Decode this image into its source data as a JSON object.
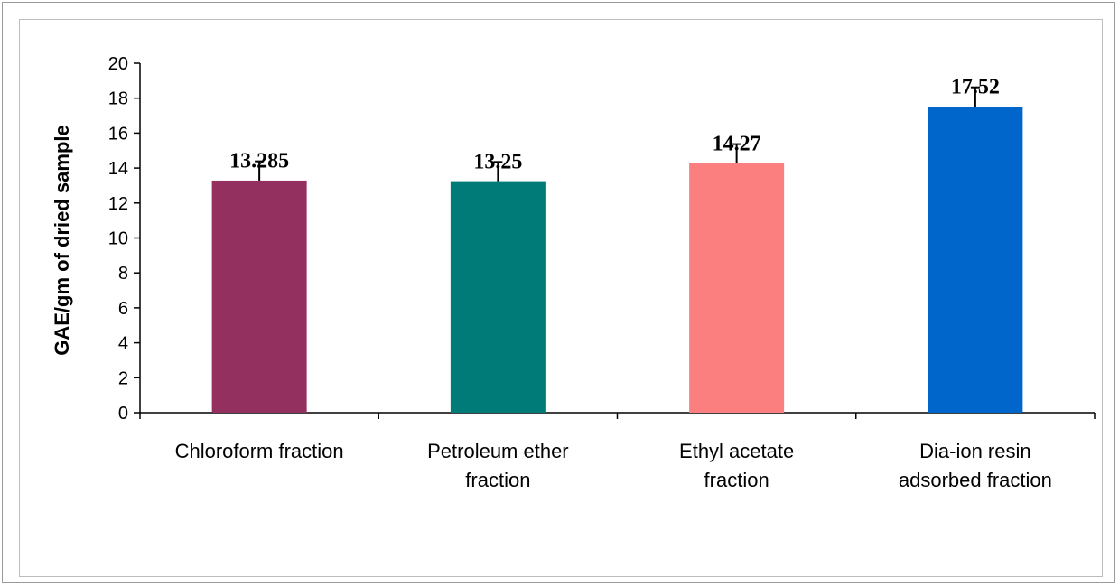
{
  "chart_data": {
    "type": "bar",
    "title": "",
    "xlabel": "",
    "ylabel": "GAE/gm of dried sample",
    "ylim": [
      0,
      20
    ],
    "yticks": [
      0,
      2,
      4,
      6,
      8,
      10,
      12,
      14,
      16,
      18,
      20
    ],
    "grid": false,
    "categories": [
      [
        "Chloroform fraction"
      ],
      [
        "Petroleum ether",
        "fraction"
      ],
      [
        "Ethyl acetate",
        "fraction"
      ],
      [
        "Dia-ion resin",
        "adsorbed fraction"
      ]
    ],
    "values": [
      13.285,
      13.25,
      14.27,
      17.52
    ],
    "data_labels": [
      "13.285",
      "13.25",
      "14.27",
      "17.52"
    ],
    "error": [
      1.1,
      1.1,
      1.1,
      1.1
    ],
    "colors": [
      "#94305f",
      "#007b78",
      "#fb7f7e",
      "#0066cc"
    ]
  }
}
